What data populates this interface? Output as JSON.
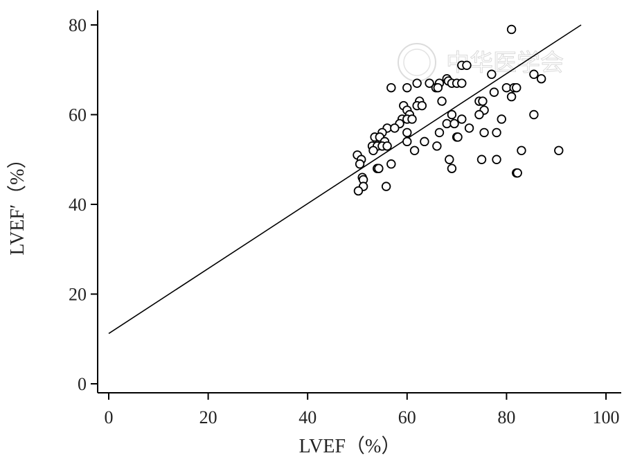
{
  "chart_data": {
    "type": "scatter",
    "title": "",
    "xlabel": "LVEF（%）",
    "ylabel": "LVEF′（%）",
    "xlim": [
      0,
      100
    ],
    "ylim": [
      0,
      80
    ],
    "xticks": [
      "0",
      "20",
      "40",
      "60",
      "80",
      "100"
    ],
    "yticks": [
      "0",
      "20",
      "40",
      "60",
      "80"
    ],
    "grid": false,
    "legend": "none",
    "marker": "open-circle",
    "colors": {
      "axis": "#000000",
      "marker_edge": "#000000",
      "marker_fill": "#ffffff",
      "line": "#000000"
    },
    "fit_line": {
      "x": [
        0,
        95
      ],
      "y": [
        11.2,
        80
      ]
    },
    "points": [
      [
        81,
        79
      ],
      [
        71,
        71
      ],
      [
        72,
        71
      ],
      [
        77,
        69
      ],
      [
        85.5,
        69
      ],
      [
        87,
        68
      ],
      [
        68,
        68
      ],
      [
        68.3,
        67.5
      ],
      [
        69,
        67
      ],
      [
        70,
        67
      ],
      [
        71,
        67
      ],
      [
        62,
        67
      ],
      [
        64.5,
        67
      ],
      [
        66.5,
        67
      ],
      [
        56.8,
        66
      ],
      [
        60,
        66
      ],
      [
        65.8,
        66
      ],
      [
        66.2,
        66
      ],
      [
        80,
        66
      ],
      [
        81.5,
        66
      ],
      [
        82,
        66
      ],
      [
        77.5,
        65
      ],
      [
        81,
        64
      ],
      [
        67,
        63
      ],
      [
        62.5,
        63
      ],
      [
        74.5,
        63
      ],
      [
        75.2,
        63
      ],
      [
        59.3,
        62
      ],
      [
        62,
        62
      ],
      [
        63,
        62
      ],
      [
        60,
        61
      ],
      [
        75.5,
        61
      ],
      [
        60.5,
        60
      ],
      [
        69,
        60
      ],
      [
        74.5,
        60
      ],
      [
        85.5,
        60
      ],
      [
        59,
        59
      ],
      [
        60,
        59
      ],
      [
        61,
        59
      ],
      [
        71,
        59
      ],
      [
        79,
        59
      ],
      [
        58.5,
        58
      ],
      [
        68,
        58
      ],
      [
        69.5,
        58
      ],
      [
        56,
        57
      ],
      [
        57.5,
        57
      ],
      [
        72.5,
        57
      ],
      [
        55,
        56
      ],
      [
        60,
        56
      ],
      [
        66.5,
        56
      ],
      [
        75.5,
        56
      ],
      [
        78,
        56
      ],
      [
        53.5,
        55
      ],
      [
        54.5,
        55
      ],
      [
        70,
        55
      ],
      [
        70.2,
        55
      ],
      [
        55.5,
        54
      ],
      [
        60,
        54
      ],
      [
        63.5,
        54
      ],
      [
        53,
        53
      ],
      [
        54,
        53
      ],
      [
        55,
        53
      ],
      [
        56,
        53
      ],
      [
        66,
        53
      ],
      [
        53.2,
        52
      ],
      [
        61.5,
        52
      ],
      [
        83,
        52
      ],
      [
        90.5,
        52
      ],
      [
        50,
        51
      ],
      [
        50.8,
        50
      ],
      [
        68.5,
        50
      ],
      [
        75,
        50
      ],
      [
        78,
        50
      ],
      [
        50.5,
        49
      ],
      [
        56.8,
        49
      ],
      [
        54,
        48
      ],
      [
        54.3,
        48
      ],
      [
        69,
        48
      ],
      [
        82,
        47
      ],
      [
        82.2,
        47
      ],
      [
        51,
        46
      ],
      [
        51.2,
        45.5
      ],
      [
        51.2,
        44
      ],
      [
        55.8,
        44
      ],
      [
        50.2,
        43
      ]
    ]
  },
  "watermark": {
    "text": "中华医学会"
  }
}
